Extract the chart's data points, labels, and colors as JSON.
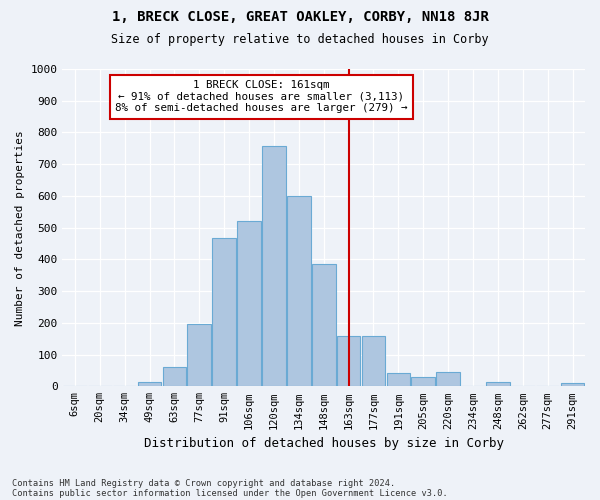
{
  "title": "1, BRECK CLOSE, GREAT OAKLEY, CORBY, NN18 8JR",
  "subtitle": "Size of property relative to detached houses in Corby",
  "xlabel": "Distribution of detached houses by size in Corby",
  "ylabel": "Number of detached properties",
  "footer1": "Contains HM Land Registry data © Crown copyright and database right 2024.",
  "footer2": "Contains public sector information licensed under the Open Government Licence v3.0.",
  "categories": [
    "6sqm",
    "20sqm",
    "34sqm",
    "49sqm",
    "63sqm",
    "77sqm",
    "91sqm",
    "106sqm",
    "120sqm",
    "134sqm",
    "148sqm",
    "163sqm",
    "177sqm",
    "191sqm",
    "205sqm",
    "220sqm",
    "234sqm",
    "248sqm",
    "262sqm",
    "277sqm",
    "291sqm"
  ],
  "values": [
    0,
    0,
    0,
    15,
    62,
    197,
    468,
    520,
    757,
    600,
    385,
    160,
    160,
    42,
    28,
    44,
    0,
    12,
    0,
    0,
    10
  ],
  "bar_color": "#aec6e0",
  "bar_edge_color": "#6aaad4",
  "vline_index": 11,
  "vline_color": "#cc0000",
  "annotation_line1": "1 BRECK CLOSE: 161sqm",
  "annotation_line2": "← 91% of detached houses are smaller (3,113)",
  "annotation_line3": "8% of semi-detached houses are larger (279) →",
  "annotation_box_color": "#ffffff",
  "annotation_box_edge_color": "#cc0000",
  "bg_color": "#eef2f8",
  "grid_color": "#ffffff",
  "ylim": [
    0,
    1000
  ],
  "yticks": [
    0,
    100,
    200,
    300,
    400,
    500,
    600,
    700,
    800,
    900,
    1000
  ]
}
